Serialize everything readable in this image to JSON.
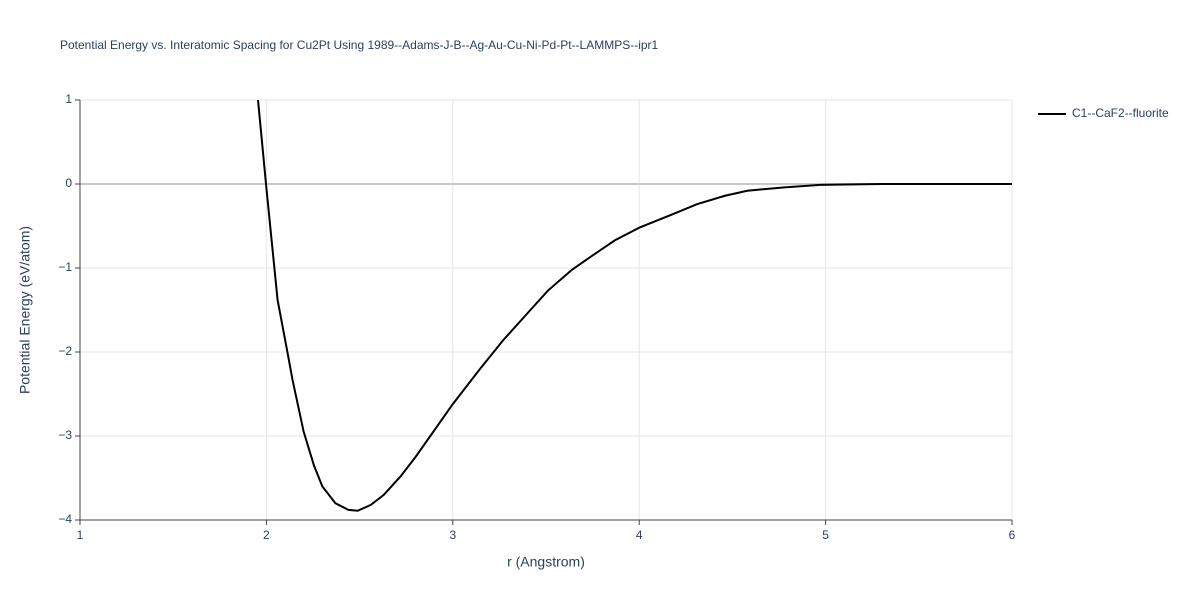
{
  "chart_data": {
    "type": "line",
    "title": "Potential Energy vs. Interatomic Spacing for Cu2Pt Using 1989--Adams-J-B--Ag-Au-Cu-Ni-Pd-Pt--LAMMPS--ipr1",
    "x_label": "r (Angstrom)",
    "y_label": "Potential Energy (eV/atom)",
    "xlim": [
      1,
      6
    ],
    "ylim": [
      -4,
      1
    ],
    "xticks": [
      1,
      2,
      3,
      4,
      5,
      6
    ],
    "yticks": [
      {
        "value": -4,
        "label": "−4"
      },
      {
        "value": -3,
        "label": "−3"
      },
      {
        "value": -2,
        "label": "−2"
      },
      {
        "value": -1,
        "label": "−1"
      },
      0,
      1
    ],
    "grid": true,
    "legend": "top-right",
    "series": [
      {
        "name": "C1--CaF2--fluorite",
        "color": "#000000",
        "x": [
          1.955,
          2.0,
          2.06,
          2.116,
          2.14,
          2.2,
          2.255,
          2.3,
          2.37,
          2.44,
          2.49,
          2.56,
          2.63,
          2.72,
          2.8,
          3.0,
          3.15,
          3.27,
          3.4,
          3.51,
          3.64,
          3.75,
          3.87,
          4.0,
          4.19,
          4.31,
          4.46,
          4.58,
          4.78,
          4.97,
          5.3,
          6.0
        ],
        "values": [
          1.0,
          -0.05,
          -1.38,
          -2.04,
          -2.33,
          -2.95,
          -3.35,
          -3.6,
          -3.8,
          -3.88,
          -3.89,
          -3.82,
          -3.7,
          -3.48,
          -3.25,
          -2.62,
          -2.19,
          -1.86,
          -1.54,
          -1.27,
          -1.02,
          -0.85,
          -0.67,
          -0.52,
          -0.35,
          -0.24,
          -0.14,
          -0.08,
          -0.04,
          -0.01,
          0,
          0
        ]
      }
    ]
  }
}
